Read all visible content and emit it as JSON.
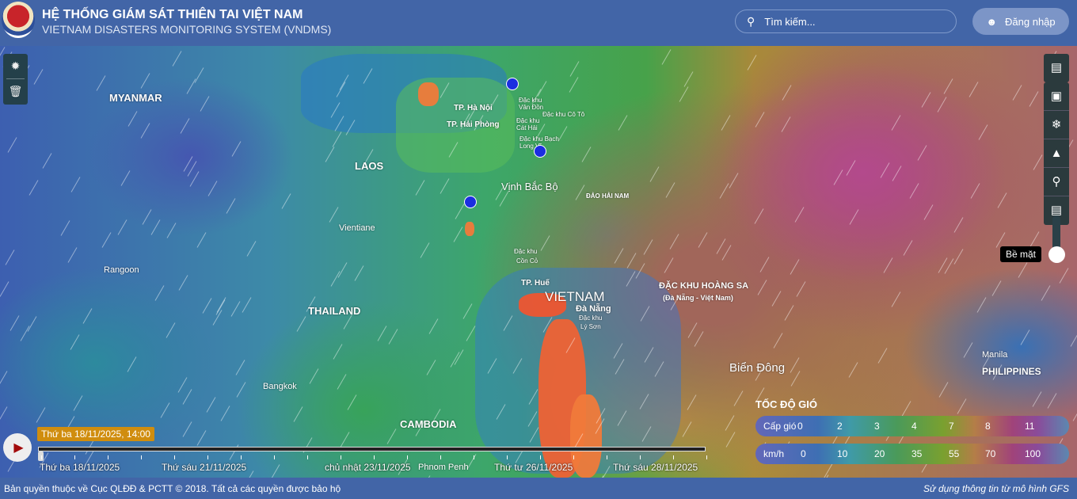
{
  "header": {
    "title": "HỆ THỐNG GIÁM SÁT THIÊN TAI VIỆT NAM",
    "subtitle": "VIETNAM DISASTERS MONITORING SYSTEM (VNDMS)",
    "search_placeholder": "Tìm kiếm...",
    "login_label": "Đăng nhập"
  },
  "map": {
    "labels": {
      "myanmar": "MYANMAR",
      "laos": "LAOS",
      "vientiane": "Vientiane",
      "rangoon": "Rangoon",
      "thailand": "THAILAND",
      "bangkok": "Bangkok",
      "cambodia": "CAMBODIA",
      "phnom_penh": "Phnom Penh",
      "vinh_bac_bo": "Vịnh Bắc Bộ",
      "dao_hai_nam": "ĐẢO HẢI NAM",
      "vietnam": "VIETNAM",
      "da_nang": "Đà Nẵng",
      "hoang_sa": "ĐẶC KHU HOÀNG SA",
      "hoang_sa_sub": "(Đà Nẵng - Việt Nam)",
      "bien_dong": "Biển Đông",
      "manila": "Manila",
      "philippines": "PHILIPPINES",
      "ha_noi": "TP. Hà Nội",
      "hai_phong": "TP. Hải Phòng",
      "van_don": "Đặc khu Vân Đồn",
      "co_to": "Đặc khu Cô Tô",
      "cat_hai": "Đặc khu Cát Hải",
      "bach_long_vi": "Đặc khu Bạch Long Vĩ",
      "con_co_1": "Đặc khu",
      "con_co_2": "Cồn Cỏ",
      "hue": "TP. Huế",
      "ly_son_1": "Đặc khu",
      "ly_son_2": "Lý Sơn"
    }
  },
  "layer_slider": {
    "label": "Bề mặt"
  },
  "legend": {
    "title": "TỐC ĐỘ GIÓ",
    "scale_label": "Cấp gió",
    "scale_values": [
      "0",
      "2",
      "3",
      "4",
      "7",
      "8",
      "11"
    ],
    "speed_label": "km/h",
    "speed_values": [
      "0",
      "10",
      "20",
      "35",
      "55",
      "70",
      "100"
    ]
  },
  "timeline": {
    "current": "Thứ ba 18/11/2025, 14:00",
    "labels": [
      "Thứ ba 18/11/2025",
      "Thứ sáu 21/11/2025",
      "chủ nhật 23/11/2025",
      "Thứ tư 26/11/2025",
      "Thứ sáu 28/11/2025"
    ],
    "progress": 0
  },
  "footer": {
    "copyright": "Bản quyền thuộc về Cục QLĐĐ & PCTT © 2018. Tất cả các quyền được bảo hộ",
    "model_note": "Sử dụng thông tin từ mô hình GFS"
  }
}
